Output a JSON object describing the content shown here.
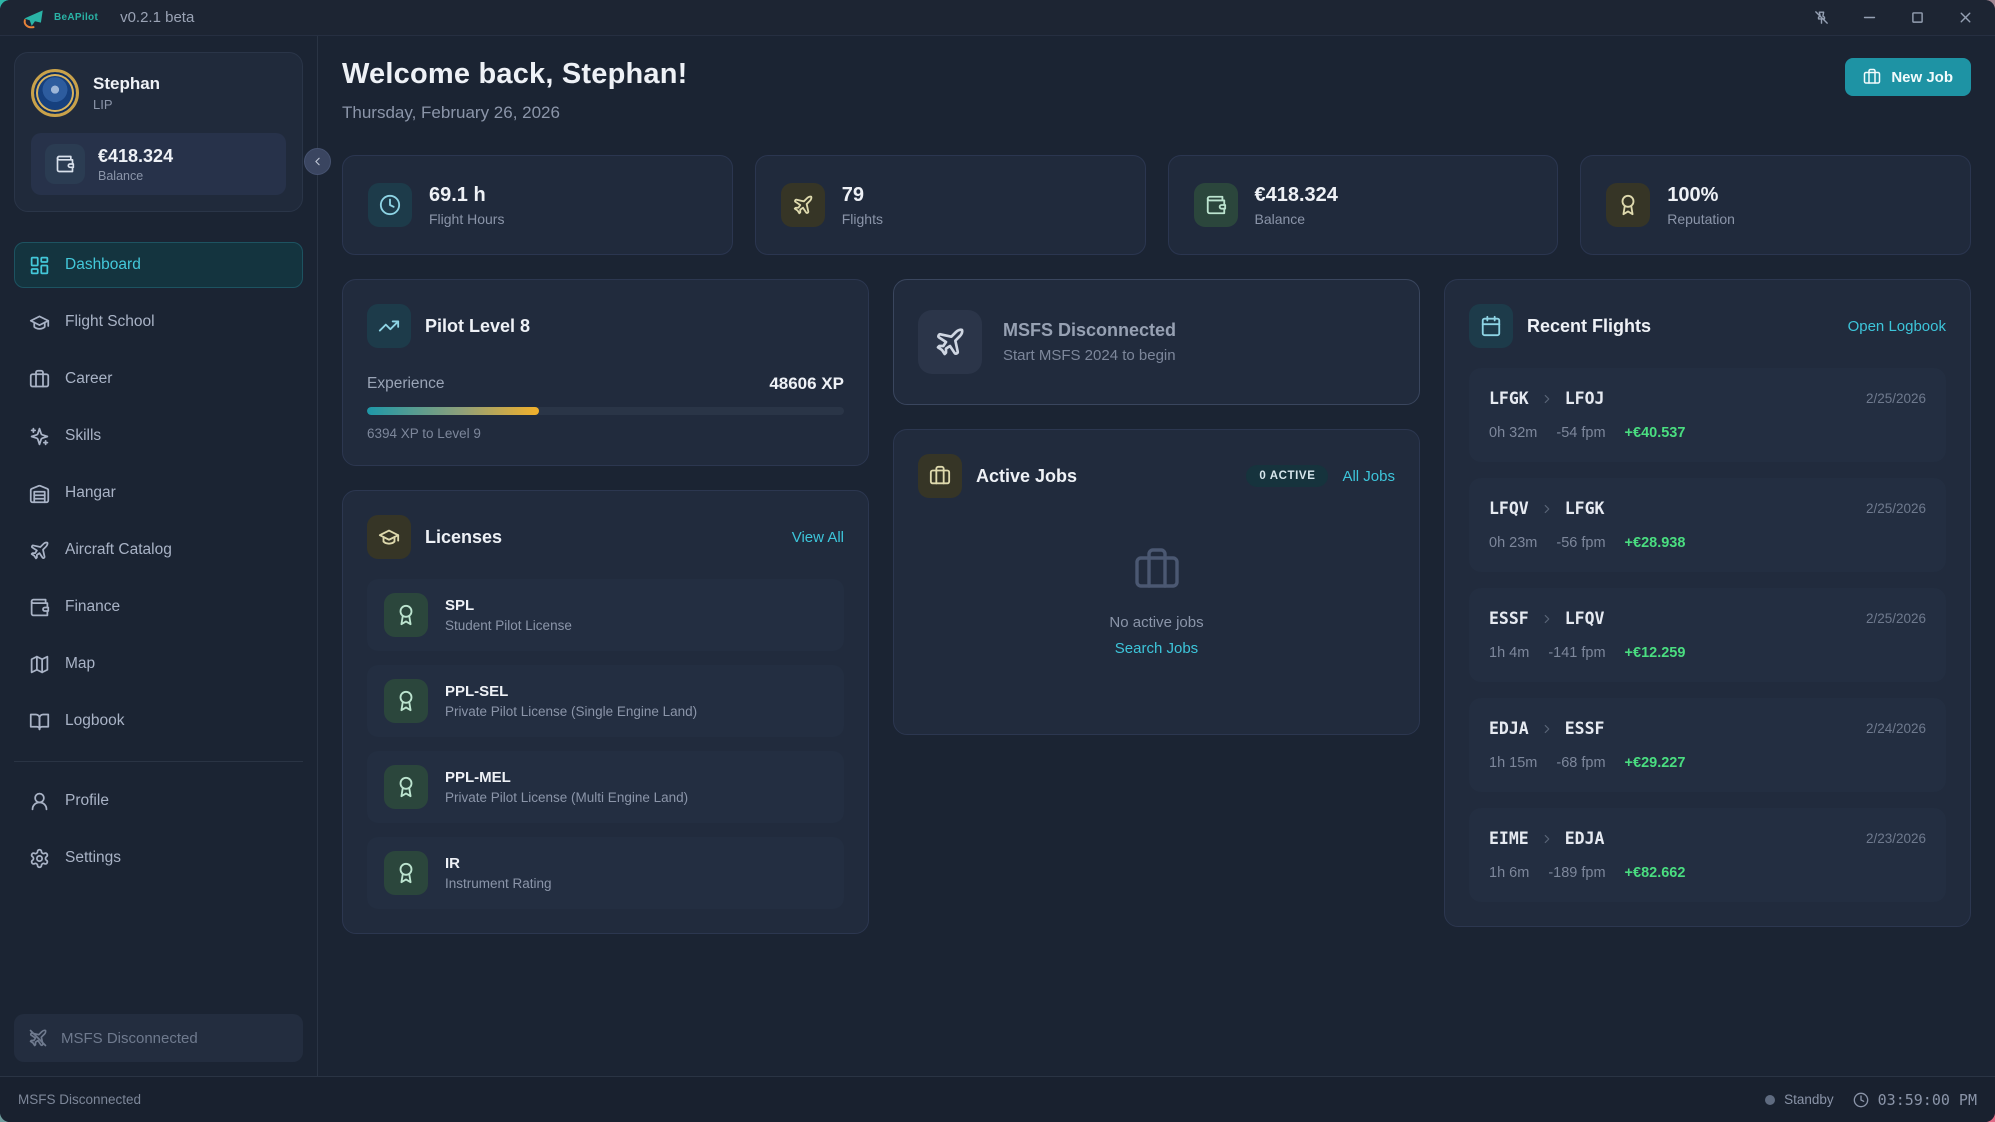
{
  "titlebar": {
    "logo_text": "BeAPilot",
    "version": "v0.2.1 beta",
    "controls": {
      "pin_icon": "pin-off-icon",
      "minimize_icon": "minimize-icon",
      "maximize_icon": "maximize-icon",
      "close_icon": "close-icon"
    }
  },
  "sidebar": {
    "profile": {
      "name": "Stephan",
      "subtitle": "LIP",
      "balance_value": "€418.324",
      "balance_label": "Balance",
      "balance_icon": "wallet-icon"
    },
    "nav": [
      {
        "label": "Dashboard",
        "icon": "dashboard-icon",
        "active": true
      },
      {
        "label": "Flight School",
        "icon": "graduation-cap-icon",
        "active": false
      },
      {
        "label": "Career",
        "icon": "briefcase-icon",
        "active": false
      },
      {
        "label": "Skills",
        "icon": "sparkles-icon",
        "active": false
      },
      {
        "label": "Hangar",
        "icon": "warehouse-icon",
        "active": false
      },
      {
        "label": "Aircraft Catalog",
        "icon": "plane-icon",
        "active": false
      },
      {
        "label": "Finance",
        "icon": "wallet-icon",
        "active": false
      },
      {
        "label": "Map",
        "icon": "map-icon",
        "active": false
      },
      {
        "label": "Logbook",
        "icon": "book-open-icon",
        "active": false
      }
    ],
    "nav_secondary": [
      {
        "label": "Profile",
        "icon": "user-icon"
      },
      {
        "label": "Settings",
        "icon": "gear-icon"
      }
    ],
    "connection_status": {
      "label": "MSFS Disconnected",
      "icon": "plane-off-icon"
    }
  },
  "header": {
    "welcome": "Welcome back, Stephan!",
    "date": "Thursday, February 26, 2026",
    "new_job_label": "New Job",
    "new_job_icon": "briefcase-icon"
  },
  "stats": [
    {
      "value": "69.1 h",
      "label": "Flight Hours",
      "icon": "clock-icon",
      "tint": "teal"
    },
    {
      "value": "79",
      "label": "Flights",
      "icon": "plane-icon",
      "tint": "olive"
    },
    {
      "value": "€418.324",
      "label": "Balance",
      "icon": "wallet-icon",
      "tint": "green"
    },
    {
      "value": "100%",
      "label": "Reputation",
      "icon": "award-icon",
      "tint": "olive"
    }
  ],
  "pilot_level": {
    "title": "Pilot Level 8",
    "icon": "trending-up-icon",
    "experience_label": "Experience",
    "xp": "48606 XP",
    "progress_pct": 36,
    "to_next": "6394 XP to Level 9"
  },
  "licenses": {
    "title": "Licenses",
    "icon": "graduation-cap-icon",
    "view_all": "View All",
    "items": [
      {
        "code": "SPL",
        "name": "Student Pilot License"
      },
      {
        "code": "PPL-SEL",
        "name": "Private Pilot License (Single Engine Land)"
      },
      {
        "code": "PPL-MEL",
        "name": "Private Pilot License (Multi Engine Land)"
      },
      {
        "code": "IR",
        "name": "Instrument Rating"
      }
    ]
  },
  "msfs_card": {
    "title": "MSFS Disconnected",
    "subtitle": "Start MSFS 2024 to begin",
    "icon": "plane-icon"
  },
  "active_jobs": {
    "title": "Active Jobs",
    "icon": "briefcase-icon",
    "badge": "0 ACTIVE",
    "all_jobs": "All Jobs",
    "empty_text": "No active jobs",
    "search_link": "Search Jobs"
  },
  "recent_flights": {
    "title": "Recent Flights",
    "icon": "calendar-icon",
    "open_logbook": "Open Logbook",
    "flights": [
      {
        "from": "LFGK",
        "to": "LFOJ",
        "date": "2/25/2026",
        "duration": "0h 32m",
        "fpm": "-54 fpm",
        "earnings": "+€40.537"
      },
      {
        "from": "LFQV",
        "to": "LFGK",
        "date": "2/25/2026",
        "duration": "0h 23m",
        "fpm": "-56 fpm",
        "earnings": "+€28.938"
      },
      {
        "from": "ESSF",
        "to": "LFQV",
        "date": "2/25/2026",
        "duration": "1h 4m",
        "fpm": "-141 fpm",
        "earnings": "+€12.259"
      },
      {
        "from": "EDJA",
        "to": "ESSF",
        "date": "2/24/2026",
        "duration": "1h 15m",
        "fpm": "-68 fpm",
        "earnings": "+€29.227"
      },
      {
        "from": "EIME",
        "to": "EDJA",
        "date": "2/23/2026",
        "duration": "1h 6m",
        "fpm": "-189 fpm",
        "earnings": "+€82.662"
      }
    ]
  },
  "statusbar": {
    "left": "MSFS Disconnected",
    "status": "Standby",
    "time": "03:59:00 PM"
  },
  "colors": {
    "background": "#1b2433",
    "card": "#212b3d",
    "accent_teal": "#1e93a4",
    "link_cyan": "#3dc5da",
    "positive_green": "#4ade80",
    "progress_gradient_start": "#1e98a8",
    "progress_gradient_end": "#f2b02a"
  }
}
